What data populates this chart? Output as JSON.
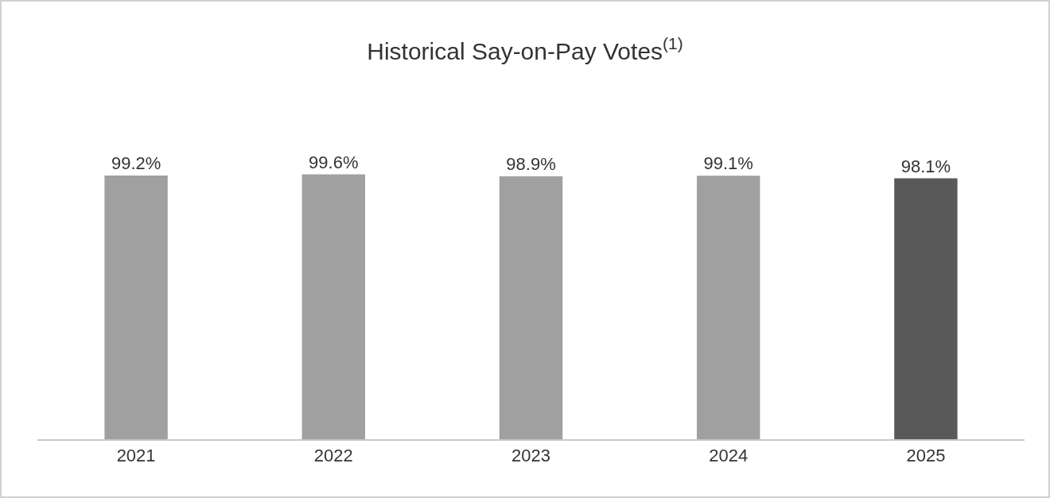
{
  "chart_data": {
    "type": "bar",
    "title": "Historical Say-on-Pay Votes$^{(1)}$",
    "categories": [
      "2021",
      "2022",
      "2023",
      "2024",
      "2025"
    ],
    "values": [
      99.2,
      99.6,
      98.9,
      99.1,
      98.1
    ],
    "colors": [
      "#a0a0a0",
      "#a0a0a0",
      "#a0a0a0",
      "#a0a0a0",
      "#595959"
    ],
    "value_labels": [
      "99.2%",
      "99.6%",
      "98.9%",
      "99.1%",
      "98.1%"
    ],
    "grid": false,
    "legend": false
  }
}
